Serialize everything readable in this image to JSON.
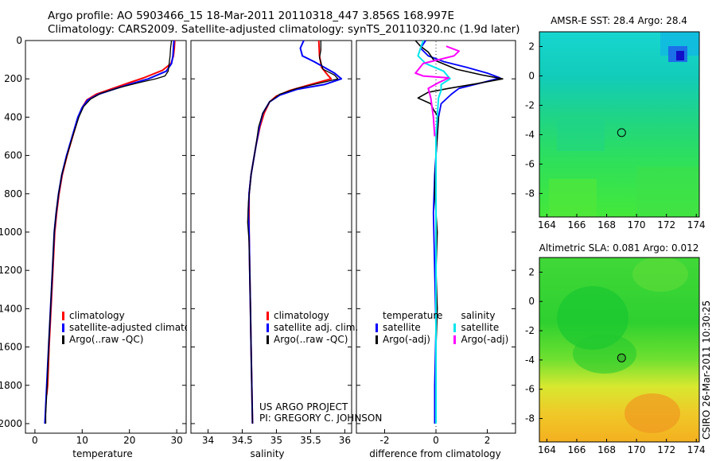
{
  "header": {
    "line1": "Argo profile: AO 5903466_15 18-Mar-2011 20110318_447 3.856S 168.997E",
    "line2": "Climatology: CARS2009. Satellite-adjusted climatology: synTS_20110320.nc (1.9d later)"
  },
  "side_label": "CSIRO 26-Mar-2011 10:30:25",
  "project": {
    "line1": "US ARGO PROJECT",
    "line2": "PI: GREGORY C. JOHNSON"
  },
  "colors": {
    "climatology": "#ff0000",
    "satellite": "#0000ff",
    "argo": "#000000",
    "sat_sal_diff": "#00e5ee",
    "argo_sal_diff": "#ff00ff"
  },
  "legends": {
    "temperature": [
      "climatology",
      "satellite-adjusted climatology",
      "Argo(..raw -QC)"
    ],
    "salinity": [
      "climatology",
      "satellite adj. clim.",
      "Argo(..raw -QC)"
    ],
    "difference": {
      "temp_header": "temperature",
      "temp_items": [
        "satellite",
        "Argo(-adj)"
      ],
      "sal_header": "salinity",
      "sal_items": [
        "satellite",
        "Argo(-adj)"
      ]
    }
  },
  "chart_data": [
    {
      "type": "line",
      "id": "temperature",
      "xlabel": "temperature",
      "ylabel": "",
      "xlim": [
        -2,
        32
      ],
      "ylim": [
        2050,
        0
      ],
      "xticks": [
        "0",
        "10",
        "20",
        "30"
      ],
      "yticks": [
        "0",
        "200",
        "400",
        "600",
        "800",
        "1000",
        "1200",
        "1400",
        "1600",
        "1800",
        "2000"
      ],
      "series": [
        {
          "name": "climatology",
          "color": "#ff0000",
          "width": 2,
          "points": [
            [
              29.6,
              0
            ],
            [
              29.5,
              40
            ],
            [
              29.3,
              80
            ],
            [
              28.8,
              120
            ],
            [
              27,
              155
            ],
            [
              23,
              195
            ],
            [
              20,
              220
            ],
            [
              16.5,
              250
            ],
            [
              13,
              280
            ],
            [
              11,
              310
            ],
            [
              10,
              350
            ],
            [
              9.2,
              400
            ],
            [
              8,
              500
            ],
            [
              6.8,
              600
            ],
            [
              5.8,
              700
            ],
            [
              5.1,
              800
            ],
            [
              4.6,
              900
            ],
            [
              4.2,
              1000
            ],
            [
              3.8,
              1200
            ],
            [
              3.4,
              1400
            ],
            [
              3,
              1600
            ],
            [
              2.7,
              1800
            ],
            [
              2.5,
              1850
            ]
          ]
        },
        {
          "name": "satellite-adjusted climatology",
          "color": "#0000ff",
          "width": 2,
          "points": [
            [
              29.4,
              0
            ],
            [
              29.3,
              40
            ],
            [
              29.2,
              80
            ],
            [
              28.9,
              120
            ],
            [
              27.8,
              160
            ],
            [
              24,
              200
            ],
            [
              20.5,
              225
            ],
            [
              17,
              252
            ],
            [
              13.5,
              280
            ],
            [
              11.2,
              310
            ],
            [
              10,
              350
            ],
            [
              9.1,
              400
            ],
            [
              7.9,
              500
            ],
            [
              6.7,
              600
            ],
            [
              5.7,
              700
            ],
            [
              5,
              800
            ],
            [
              4.5,
              900
            ],
            [
              4.1,
              1000
            ],
            [
              3.7,
              1200
            ],
            [
              3.3,
              1400
            ],
            [
              2.9,
              1600
            ],
            [
              2.5,
              1800
            ],
            [
              2.2,
              1950
            ],
            [
              2.1,
              2000
            ]
          ]
        },
        {
          "name": "Argo(..raw -QC)",
          "color": "#000000",
          "width": 1.3,
          "points": [
            [
              28.9,
              0
            ],
            [
              28.7,
              40
            ],
            [
              28.6,
              80
            ],
            [
              28.4,
              120
            ],
            [
              28.2,
              160
            ],
            [
              27.5,
              185
            ],
            [
              25.5,
              200
            ],
            [
              22,
              220
            ],
            [
              18,
              245
            ],
            [
              14,
              275
            ],
            [
              11.8,
              305
            ],
            [
              10.3,
              345
            ],
            [
              9.3,
              400
            ],
            [
              8,
              500
            ],
            [
              6.8,
              600
            ],
            [
              5.7,
              700
            ],
            [
              5,
              800
            ],
            [
              4.5,
              900
            ],
            [
              4.1,
              1000
            ],
            [
              3.7,
              1200
            ],
            [
              3.3,
              1400
            ],
            [
              2.9,
              1600
            ],
            [
              2.6,
              1800
            ],
            [
              2.3,
              1950
            ],
            [
              2.3,
              2000
            ]
          ]
        }
      ]
    },
    {
      "type": "line",
      "id": "salinity",
      "xlabel": "salinity",
      "ylabel": "",
      "xlim": [
        33.75,
        36.1
      ],
      "ylim": [
        2050,
        0
      ],
      "xticks": [
        "34",
        "34.5",
        "35",
        "35.5",
        "36"
      ],
      "xtick_values": [
        34,
        34.5,
        35,
        35.5,
        36
      ],
      "series": [
        {
          "name": "climatology",
          "color": "#ff0000",
          "width": 2,
          "points": [
            [
              35.62,
              0
            ],
            [
              35.63,
              80
            ],
            [
              35.66,
              140
            ],
            [
              35.75,
              180
            ],
            [
              35.8,
              200
            ],
            [
              35.5,
              230
            ],
            [
              35.2,
              260
            ],
            [
              35,
              290
            ],
            [
              34.9,
              320
            ],
            [
              34.82,
              380
            ],
            [
              34.76,
              450
            ],
            [
              34.7,
              550
            ],
            [
              34.63,
              700
            ],
            [
              34.6,
              800
            ],
            [
              34.6,
              900
            ],
            [
              34.6,
              1000
            ],
            [
              34.61,
              1200
            ],
            [
              34.62,
              1400
            ],
            [
              34.63,
              1600
            ],
            [
              34.64,
              1800
            ],
            [
              34.65,
              2000
            ]
          ]
        },
        {
          "name": "satellite adj. clim.",
          "color": "#0000ff",
          "width": 2,
          "points": [
            [
              35.4,
              0
            ],
            [
              35.35,
              40
            ],
            [
              35.38,
              80
            ],
            [
              35.55,
              110
            ],
            [
              35.7,
              140
            ],
            [
              35.85,
              170
            ],
            [
              35.95,
              200
            ],
            [
              35.7,
              230
            ],
            [
              35.3,
              255
            ],
            [
              35.05,
              285
            ],
            [
              34.9,
              320
            ],
            [
              34.8,
              380
            ],
            [
              34.75,
              450
            ],
            [
              34.7,
              550
            ],
            [
              34.63,
              700
            ],
            [
              34.6,
              800
            ],
            [
              34.59,
              900
            ],
            [
              34.6,
              1000
            ],
            [
              34.61,
              1200
            ],
            [
              34.62,
              1400
            ],
            [
              34.63,
              1600
            ],
            [
              34.64,
              1800
            ],
            [
              34.65,
              2000
            ]
          ]
        },
        {
          "name": "Argo(..raw -QC)",
          "color": "#000000",
          "width": 1.3,
          "points": [
            [
              35.65,
              0
            ],
            [
              35.65,
              50
            ],
            [
              35.63,
              90
            ],
            [
              35.68,
              150
            ],
            [
              35.85,
              180
            ],
            [
              35.9,
              200
            ],
            [
              35.6,
              225
            ],
            [
              35.3,
              250
            ],
            [
              35.05,
              280
            ],
            [
              34.9,
              320
            ],
            [
              34.8,
              380
            ],
            [
              34.74,
              450
            ],
            [
              34.7,
              550
            ],
            [
              34.63,
              700
            ],
            [
              34.59,
              850
            ],
            [
              34.58,
              950
            ],
            [
              34.6,
              1050
            ],
            [
              34.61,
              1200
            ],
            [
              34.62,
              1400
            ],
            [
              34.63,
              1600
            ],
            [
              34.64,
              1800
            ],
            [
              34.65,
              2000
            ]
          ]
        }
      ]
    },
    {
      "type": "line",
      "id": "difference",
      "xlabel": "difference from climatology",
      "ylabel": "",
      "xlim": [
        -3.1,
        3.1
      ],
      "ylim": [
        2050,
        0
      ],
      "xticks": [
        "-2",
        "0",
        "2"
      ],
      "xtick_values": [
        -2,
        0,
        2
      ],
      "series": [
        {
          "name": "satellite (temperature)",
          "color": "#0000ff",
          "width": 1.8,
          "points": [
            [
              -0.4,
              0
            ],
            [
              -0.6,
              40
            ],
            [
              -0.3,
              80
            ],
            [
              0.3,
              110
            ],
            [
              1.2,
              140
            ],
            [
              2,
              170
            ],
            [
              2.5,
              195
            ],
            [
              1.8,
              220
            ],
            [
              0.9,
              250
            ],
            [
              0.6,
              280
            ],
            [
              0.2,
              330
            ],
            [
              0.1,
              400
            ],
            [
              0.05,
              500
            ],
            [
              -0.05,
              700
            ],
            [
              -0.1,
              900
            ],
            [
              -0.05,
              1200
            ],
            [
              0,
              1500
            ],
            [
              -0.05,
              1800
            ],
            [
              -0.05,
              2000
            ]
          ]
        },
        {
          "name": "Argo(-adj) (temperature)",
          "color": "#000000",
          "width": 1.6,
          "points": [
            [
              -0.8,
              0
            ],
            [
              -0.6,
              30
            ],
            [
              -0.3,
              60
            ],
            [
              -0.1,
              100
            ],
            [
              0.8,
              150
            ],
            [
              1.8,
              180
            ],
            [
              2.6,
              200
            ],
            [
              1.6,
              225
            ],
            [
              0.5,
              250
            ],
            [
              -0.3,
              270
            ],
            [
              -0.7,
              300
            ],
            [
              -0.2,
              330
            ],
            [
              -0.1,
              360
            ],
            [
              0.1,
              400
            ],
            [
              0.05,
              500
            ],
            [
              0,
              600
            ],
            [
              -0.05,
              800
            ],
            [
              0.05,
              1000
            ],
            [
              0,
              1200
            ],
            [
              0.05,
              1400
            ],
            [
              0,
              1600
            ],
            [
              0,
              1800
            ],
            [
              0,
              2000
            ]
          ]
        },
        {
          "name": "satellite (salinity)",
          "color": "#00e5ee",
          "width": 2,
          "points": [
            [
              -0.5,
              0
            ],
            [
              -0.6,
              40
            ],
            [
              -0.7,
              80
            ],
            [
              -0.4,
              120
            ],
            [
              0.3,
              160
            ],
            [
              0.55,
              200
            ],
            [
              0.2,
              230
            ],
            [
              0.2,
              260
            ],
            [
              0.1,
              300
            ],
            [
              0.05,
              400
            ],
            [
              0,
              500
            ],
            [
              0,
              700
            ],
            [
              0,
              900
            ],
            [
              0,
              1200
            ],
            [
              0,
              1500
            ],
            [
              0,
              1800
            ],
            [
              0,
              2000
            ]
          ]
        },
        {
          "name": "Argo(-adj) (salinity)",
          "color": "#ff00ff",
          "width": 2,
          "points": [
            [
              0.4,
              30
            ],
            [
              0.9,
              55
            ],
            [
              0.7,
              80
            ],
            [
              -0.5,
              120
            ],
            [
              -0.8,
              170
            ],
            [
              -0.5,
              185
            ],
            [
              0.5,
              195
            ],
            [
              0.1,
              220
            ],
            [
              -0.3,
              250
            ],
            [
              -0.2,
              300
            ],
            [
              -0.1,
              400
            ],
            [
              -0.05,
              500
            ]
          ]
        }
      ]
    },
    {
      "type": "heatmap",
      "id": "amsre-sst",
      "title": "AMSR-E SST: 28.4  Argo: 28.4",
      "xlim": [
        163.5,
        174.2
      ],
      "ylim": [
        -9.6,
        3
      ],
      "xticks": [
        "164",
        "166",
        "168",
        "170",
        "172",
        "174"
      ],
      "xtick_values": [
        164,
        166,
        168,
        170,
        172,
        174
      ],
      "yticks": [
        "2",
        "0",
        "-2",
        "-4",
        "-6",
        "-8"
      ],
      "ytick_values": [
        2,
        0,
        -2,
        -4,
        -6,
        -8
      ],
      "argo_position": [
        169.0,
        -3.86
      ]
    },
    {
      "type": "heatmap",
      "id": "altimetric-sla",
      "title": "Altimetric SLA: 0.081  Argo: 0.012",
      "xlim": [
        163.5,
        174.2
      ],
      "ylim": [
        -9.6,
        3
      ],
      "xticks": [
        "164",
        "166",
        "168",
        "170",
        "172",
        "174"
      ],
      "xtick_values": [
        164,
        166,
        168,
        170,
        172,
        174
      ],
      "yticks": [
        "2",
        "0",
        "-2",
        "-4",
        "-6",
        "-8"
      ],
      "ytick_values": [
        2,
        0,
        -2,
        -4,
        -6,
        -8
      ],
      "argo_position": [
        169.0,
        -3.86
      ]
    }
  ]
}
